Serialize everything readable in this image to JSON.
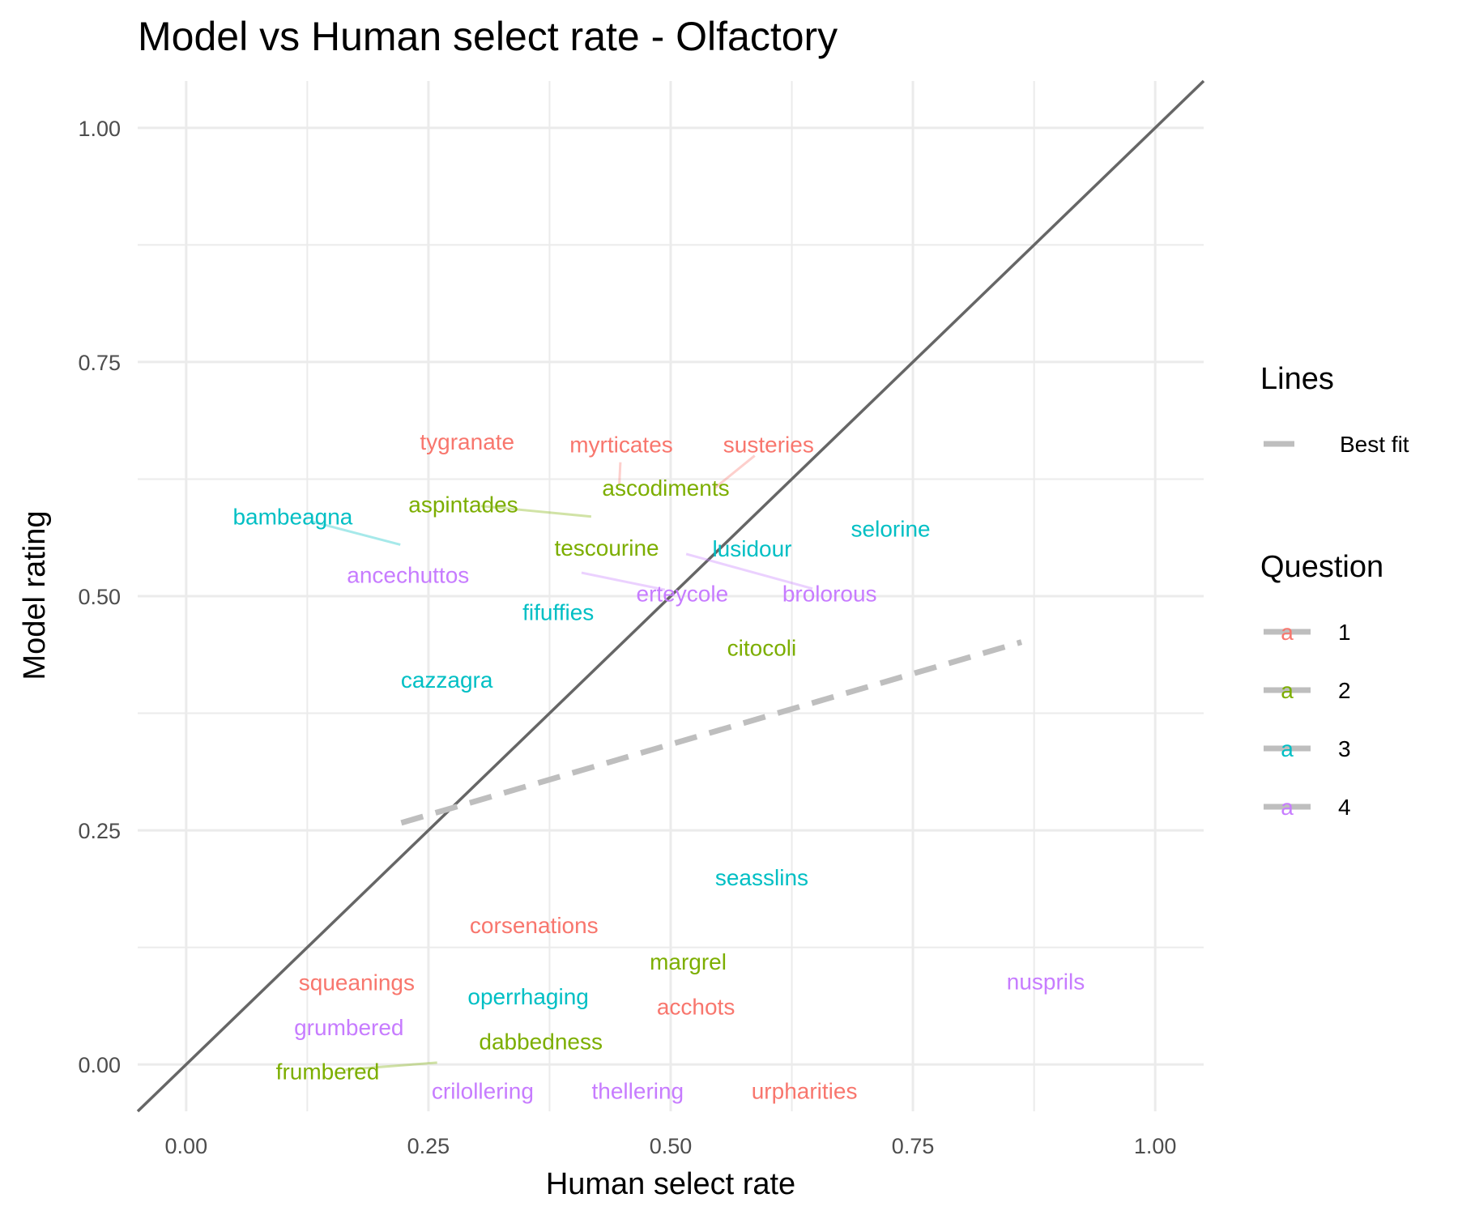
{
  "chart_data": {
    "type": "scatter",
    "title": "Model vs Human select rate - Olfactory",
    "xlabel": "Human select rate",
    "ylabel": "Model rating",
    "xlim": [
      -0.05,
      1.05
    ],
    "ylim": [
      -0.05,
      1.05
    ],
    "x_ticks": [
      0,
      0.25,
      0.5,
      0.75,
      1
    ],
    "x_tick_labels": [
      "0.00",
      "0.25",
      "0.50",
      "0.75",
      "1.00"
    ],
    "y_ticks": [
      0,
      0.25,
      0.5,
      0.75,
      1
    ],
    "y_tick_labels": [
      "0.00",
      "0.25",
      "0.50",
      "0.75",
      "1.00"
    ],
    "grid": true,
    "reference_line": {
      "name": "y = x",
      "color": "#666666",
      "from": [
        -0.05,
        -0.05
      ],
      "to": [
        1.05,
        1.05
      ]
    },
    "best_fit": {
      "name": "Best fit",
      "color": "#bebebe",
      "from": [
        0.222,
        0.258
      ],
      "to": [
        0.862,
        0.451
      ]
    },
    "question_colors": {
      "1": "#F8766D",
      "2": "#7CAE00",
      "3": "#00BFC4",
      "4": "#C77CFF"
    },
    "points": [
      {
        "label": "tygranate",
        "question": "1",
        "x": 0.29,
        "y": 0.665
      },
      {
        "label": "myrticates",
        "question": "1",
        "x": 0.447,
        "y": 0.62,
        "label_x": 0.449,
        "label_y": 0.662
      },
      {
        "label": "susteries",
        "question": "1",
        "x": 0.545,
        "y": 0.615,
        "label_x": 0.601,
        "label_y": 0.662
      },
      {
        "label": "ascodiments",
        "question": "2",
        "x": 0.495,
        "y": 0.616
      },
      {
        "label": "aspintades",
        "question": "2",
        "x": 0.418,
        "y": 0.585,
        "label_x": 0.286,
        "label_y": 0.598
      },
      {
        "label": "bambeagna",
        "question": "3",
        "x": 0.221,
        "y": 0.555,
        "label_x": 0.11,
        "label_y": 0.585
      },
      {
        "label": "tescourine",
        "question": "2",
        "x": 0.434,
        "y": 0.552
      },
      {
        "label": "lusidour",
        "question": "3",
        "x": 0.584,
        "y": 0.551
      },
      {
        "label": "selorine",
        "question": "3",
        "x": 0.727,
        "y": 0.572
      },
      {
        "label": "ancechuttos",
        "question": "4",
        "x": 0.229,
        "y": 0.523
      },
      {
        "label": "erteycole",
        "question": "4",
        "x": 0.408,
        "y": 0.525,
        "label_x": 0.512,
        "label_y": 0.503
      },
      {
        "label": "brolorous",
        "question": "4",
        "x": 0.516,
        "y": 0.545,
        "label_x": 0.664,
        "label_y": 0.503
      },
      {
        "label": "fifuffies",
        "question": "3",
        "x": 0.384,
        "y": 0.483
      },
      {
        "label": "citocoli",
        "question": "2",
        "x": 0.594,
        "y": 0.445
      },
      {
        "label": "cazzagra",
        "question": "3",
        "x": 0.269,
        "y": 0.411
      },
      {
        "label": "seasslins",
        "question": "3",
        "x": 0.594,
        "y": 0.2
      },
      {
        "label": "corsenations",
        "question": "1",
        "x": 0.359,
        "y": 0.149
      },
      {
        "label": "margrel",
        "question": "2",
        "x": 0.518,
        "y": 0.11
      },
      {
        "label": "squeanings",
        "question": "1",
        "x": 0.176,
        "y": 0.088
      },
      {
        "label": "nusprils",
        "question": "4",
        "x": 0.887,
        "y": 0.089
      },
      {
        "label": "operrhaging",
        "question": "3",
        "x": 0.353,
        "y": 0.073
      },
      {
        "label": "acchots",
        "question": "1",
        "x": 0.526,
        "y": 0.062
      },
      {
        "label": "grumbered",
        "question": "4",
        "x": 0.168,
        "y": 0.04
      },
      {
        "label": "dabbedness",
        "question": "2",
        "x": 0.366,
        "y": 0.025
      },
      {
        "label": "frumbered",
        "question": "2",
        "x": 0.259,
        "y": 0.002,
        "label_x": 0.146,
        "label_y": -0.007
      },
      {
        "label": "crilollering",
        "question": "4",
        "x": 0.306,
        "y": -0.028
      },
      {
        "label": "thellering",
        "question": "4",
        "x": 0.466,
        "y": -0.028
      },
      {
        "label": "urpharities",
        "question": "1",
        "x": 0.638,
        "y": -0.028
      }
    ]
  },
  "legend": {
    "lines_title": "Lines",
    "lines_items": [
      {
        "label": "Best fit",
        "color": "#bebebe"
      }
    ],
    "question_title": "Question",
    "question_items": [
      {
        "label": "1",
        "glyph": "a",
        "color": "#F8766D"
      },
      {
        "label": "2",
        "glyph": "a",
        "color": "#7CAE00"
      },
      {
        "label": "3",
        "glyph": "a",
        "color": "#00BFC4"
      },
      {
        "label": "4",
        "glyph": "a",
        "color": "#C77CFF"
      }
    ]
  }
}
